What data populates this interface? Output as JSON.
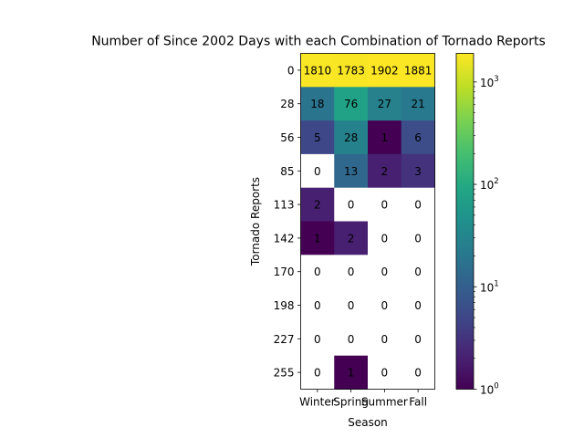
{
  "chart_data": {
    "type": "heatmap",
    "title": "Number of Since 2002 Days with each Combination of Tornado Reports",
    "xlabel": "Season",
    "ylabel": "Tornado Reports",
    "x_categories": [
      "Winter",
      "Spring",
      "Summer",
      "Fall"
    ],
    "y_categories": [
      "0",
      "28",
      "56",
      "85",
      "113",
      "142",
      "170",
      "198",
      "227",
      "255"
    ],
    "values": [
      [
        1810,
        1783,
        1902,
        1881
      ],
      [
        18,
        76,
        27,
        21
      ],
      [
        5,
        28,
        1,
        6
      ],
      [
        0,
        13,
        2,
        3
      ],
      [
        2,
        0,
        0,
        0
      ],
      [
        1,
        2,
        0,
        0
      ],
      [
        0,
        0,
        0,
        0
      ],
      [
        0,
        0,
        0,
        0
      ],
      [
        0,
        0,
        0,
        0
      ],
      [
        0,
        1,
        0,
        0
      ]
    ],
    "color_scale": "log",
    "colormap": "viridis",
    "colorbar": {
      "range": [
        1,
        1902
      ],
      "ticks": [
        {
          "value": 1,
          "base": "10",
          "exponent": "0"
        },
        {
          "value": 10,
          "base": "10",
          "exponent": "1"
        },
        {
          "value": 100,
          "base": "10",
          "exponent": "2"
        },
        {
          "value": 1000,
          "base": "10",
          "exponent": "3"
        }
      ]
    },
    "zero_cell_color": "#ffffff",
    "grid": false
  }
}
